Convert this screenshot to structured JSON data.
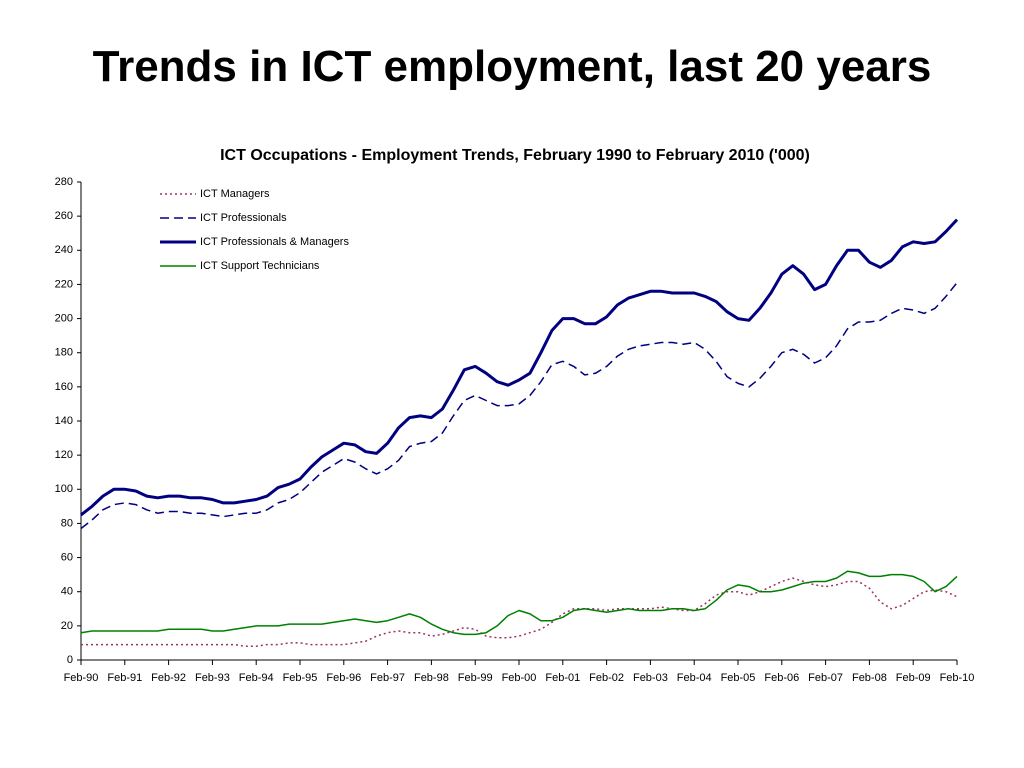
{
  "header": {
    "title": "Trends in ICT employment, last 20 years"
  },
  "chart_data": {
    "type": "line",
    "title": "ICT Occupations - Employment Trends, February 1990 to February 2010 ('000)",
    "categories": [
      "Feb-90",
      null,
      null,
      null,
      "Feb-91",
      null,
      null,
      null,
      "Feb-92",
      null,
      null,
      null,
      "Feb-93",
      null,
      null,
      null,
      "Feb-94",
      null,
      null,
      null,
      "Feb-95",
      null,
      null,
      null,
      "Feb-96",
      null,
      null,
      null,
      "Feb-97",
      null,
      null,
      null,
      "Feb-98",
      null,
      null,
      null,
      "Feb-99",
      null,
      null,
      null,
      "Feb-00",
      null,
      null,
      null,
      "Feb-01",
      null,
      null,
      null,
      "Feb-02",
      null,
      null,
      null,
      "Feb-03",
      null,
      null,
      null,
      "Feb-04",
      null,
      null,
      null,
      "Feb-05",
      null,
      null,
      null,
      "Feb-06",
      null,
      null,
      null,
      "Feb-07",
      null,
      null,
      null,
      "Feb-08",
      null,
      null,
      null,
      "Feb-09",
      null,
      null,
      null,
      "Feb-10"
    ],
    "series": [
      {
        "name": "ICT Managers",
        "color": "#a0306a",
        "dash": "dotted",
        "line_width": 1.5,
        "values": [
          9,
          9,
          9,
          9,
          9,
          9,
          9,
          9,
          9,
          9,
          9,
          9,
          9,
          9,
          9,
          8,
          8,
          9,
          9,
          10,
          10,
          9,
          9,
          9,
          9,
          10,
          11,
          14,
          16,
          17,
          16,
          16,
          14,
          15,
          17,
          19,
          18,
          14,
          13,
          13,
          14,
          16,
          18,
          22,
          27,
          30,
          30,
          30,
          29,
          30,
          30,
          30,
          30,
          31,
          30,
          29,
          29,
          33,
          38,
          40,
          40,
          38,
          40,
          43,
          46,
          48,
          46,
          44,
          43,
          44,
          46,
          46,
          42,
          34,
          30,
          32,
          36,
          40,
          41,
          40,
          37
        ]
      },
      {
        "name": "ICT Professionals",
        "color": "#000080",
        "dash": "dashed",
        "line_width": 1.5,
        "values": [
          77,
          82,
          88,
          91,
          92,
          91,
          88,
          86,
          87,
          87,
          86,
          86,
          85,
          84,
          85,
          86,
          86,
          88,
          92,
          94,
          98,
          104,
          110,
          114,
          118,
          116,
          112,
          109,
          112,
          117,
          125,
          127,
          128,
          133,
          143,
          152,
          155,
          152,
          149,
          149,
          150,
          155,
          163,
          173,
          175,
          172,
          167,
          168,
          172,
          178,
          182,
          184,
          185,
          186,
          186,
          185,
          186,
          182,
          175,
          166,
          162,
          160,
          165,
          172,
          180,
          182,
          179,
          174,
          177,
          184,
          194,
          198,
          198,
          199,
          203,
          206,
          205,
          203,
          206,
          213,
          221
        ]
      },
      {
        "name": "ICT Professionals & Managers",
        "color": "#000080",
        "dash": "solid",
        "line_width": 3,
        "values": [
          85,
          90,
          96,
          100,
          100,
          99,
          96,
          95,
          96,
          96,
          95,
          95,
          94,
          92,
          92,
          93,
          94,
          96,
          101,
          103,
          106,
          113,
          119,
          123,
          127,
          126,
          122,
          121,
          127,
          136,
          142,
          143,
          142,
          147,
          158,
          170,
          172,
          168,
          163,
          161,
          164,
          168,
          180,
          193,
          200,
          200,
          197,
          197,
          201,
          208,
          212,
          214,
          216,
          216,
          215,
          215,
          215,
          213,
          210,
          204,
          200,
          199,
          206,
          215,
          226,
          231,
          226,
          217,
          220,
          231,
          240,
          240,
          233,
          230,
          234,
          242,
          245,
          244,
          245,
          251,
          258
        ]
      },
      {
        "name": "ICT Support Technicians",
        "color": "#008000",
        "dash": "solid",
        "line_width": 1.5,
        "values": [
          16,
          17,
          17,
          17,
          17,
          17,
          17,
          17,
          18,
          18,
          18,
          18,
          17,
          17,
          18,
          19,
          20,
          20,
          20,
          21,
          21,
          21,
          21,
          22,
          23,
          24,
          23,
          22,
          23,
          25,
          27,
          25,
          21,
          18,
          16,
          15,
          15,
          16,
          20,
          26,
          29,
          27,
          23,
          23,
          25,
          29,
          30,
          29,
          28,
          29,
          30,
          29,
          29,
          29,
          30,
          30,
          29,
          30,
          35,
          41,
          44,
          43,
          40,
          40,
          41,
          43,
          45,
          46,
          46,
          48,
          52,
          51,
          49,
          49,
          50,
          50,
          49,
          46,
          40,
          43,
          49
        ]
      }
    ],
    "ylim": [
      0,
      280
    ],
    "yticks": [
      0,
      20,
      40,
      60,
      80,
      100,
      120,
      140,
      160,
      180,
      200,
      220,
      240,
      260,
      280
    ],
    "grid": false,
    "legend": "top-left"
  }
}
